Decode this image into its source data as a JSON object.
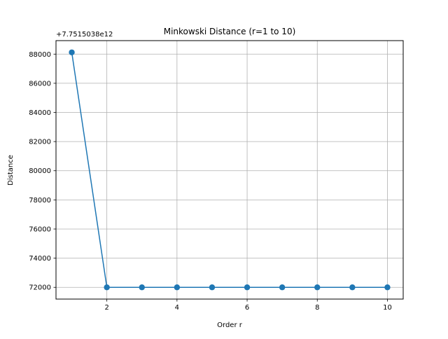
{
  "chart_data": {
    "type": "line",
    "title": "Minkowski Distance (r=1 to 10)",
    "xlabel": "Order r",
    "ylabel": "Distance",
    "offset_text": "+7.7515038e12",
    "x": [
      1,
      2,
      3,
      4,
      5,
      6,
      7,
      8,
      9,
      10
    ],
    "y": [
      88120,
      72000,
      72000,
      72000,
      72000,
      72000,
      72000,
      72000,
      72000,
      72000
    ],
    "xticks": [
      2,
      4,
      6,
      8,
      10
    ],
    "yticks": [
      72000,
      74000,
      76000,
      78000,
      80000,
      82000,
      84000,
      86000,
      88000
    ],
    "xlim": [
      0.55,
      10.45
    ],
    "ylim": [
      71194,
      88926
    ],
    "grid": true,
    "marker": "circle",
    "color": "#1f77b4"
  }
}
